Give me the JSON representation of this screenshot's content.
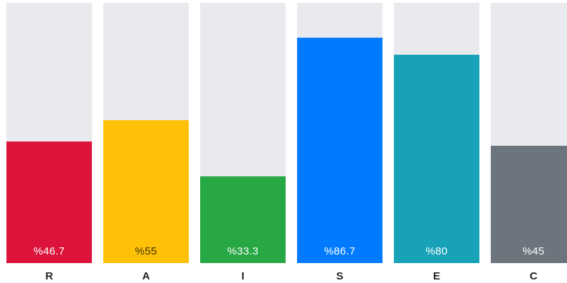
{
  "chart_data": {
    "type": "bar",
    "categories": [
      "R",
      "A",
      "I",
      "S",
      "E",
      "C"
    ],
    "values": [
      46.7,
      55,
      33.3,
      86.7,
      80,
      45
    ],
    "value_labels": [
      "%46.7",
      "%55",
      "%33.3",
      "%86.7",
      "%80",
      "%45"
    ],
    "colors": [
      "#dc143c",
      "#ffc107",
      "#28a745",
      "#007bff",
      "#17a2b8",
      "#6c757d"
    ],
    "track_color": "#e9eaed",
    "ylim": [
      0,
      100
    ],
    "grid": false,
    "legend": "none"
  }
}
